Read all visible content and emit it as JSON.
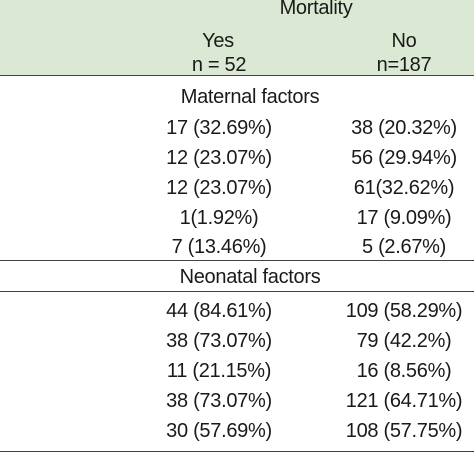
{
  "header": {
    "group_title": "Mortality",
    "yes_label": "Yes",
    "yes_n": "n = 52",
    "no_label": "No",
    "no_n": "n=187"
  },
  "sections": [
    {
      "title": "Maternal factors",
      "rows": [
        {
          "yes": "17 (32.69%)",
          "no": "38 (20.32%)"
        },
        {
          "yes": "12 (23.07%)",
          "no": "56 (29.94%)"
        },
        {
          "yes": "12 (23.07%)",
          "no": "61(32.62%)"
        },
        {
          "yes": "1(1.92%)",
          "no": "17 (9.09%)"
        },
        {
          "yes": "7 (13.46%)",
          "no": "5 (2.67%)"
        }
      ]
    },
    {
      "title": "Neonatal factors",
      "rows": [
        {
          "yes": "44 (84.61%)",
          "no": "109 (58.29%)"
        },
        {
          "yes": "38 (73.07%)",
          "no": "79 (42.2%)"
        },
        {
          "yes": "11 (21.15%)",
          "no": "16 (8.56%)"
        },
        {
          "yes": "38 (73.07%)",
          "no": "121 (64.71%)"
        },
        {
          "yes": "30 (57.69%)",
          "no": "108 (57.75%)"
        }
      ]
    }
  ]
}
